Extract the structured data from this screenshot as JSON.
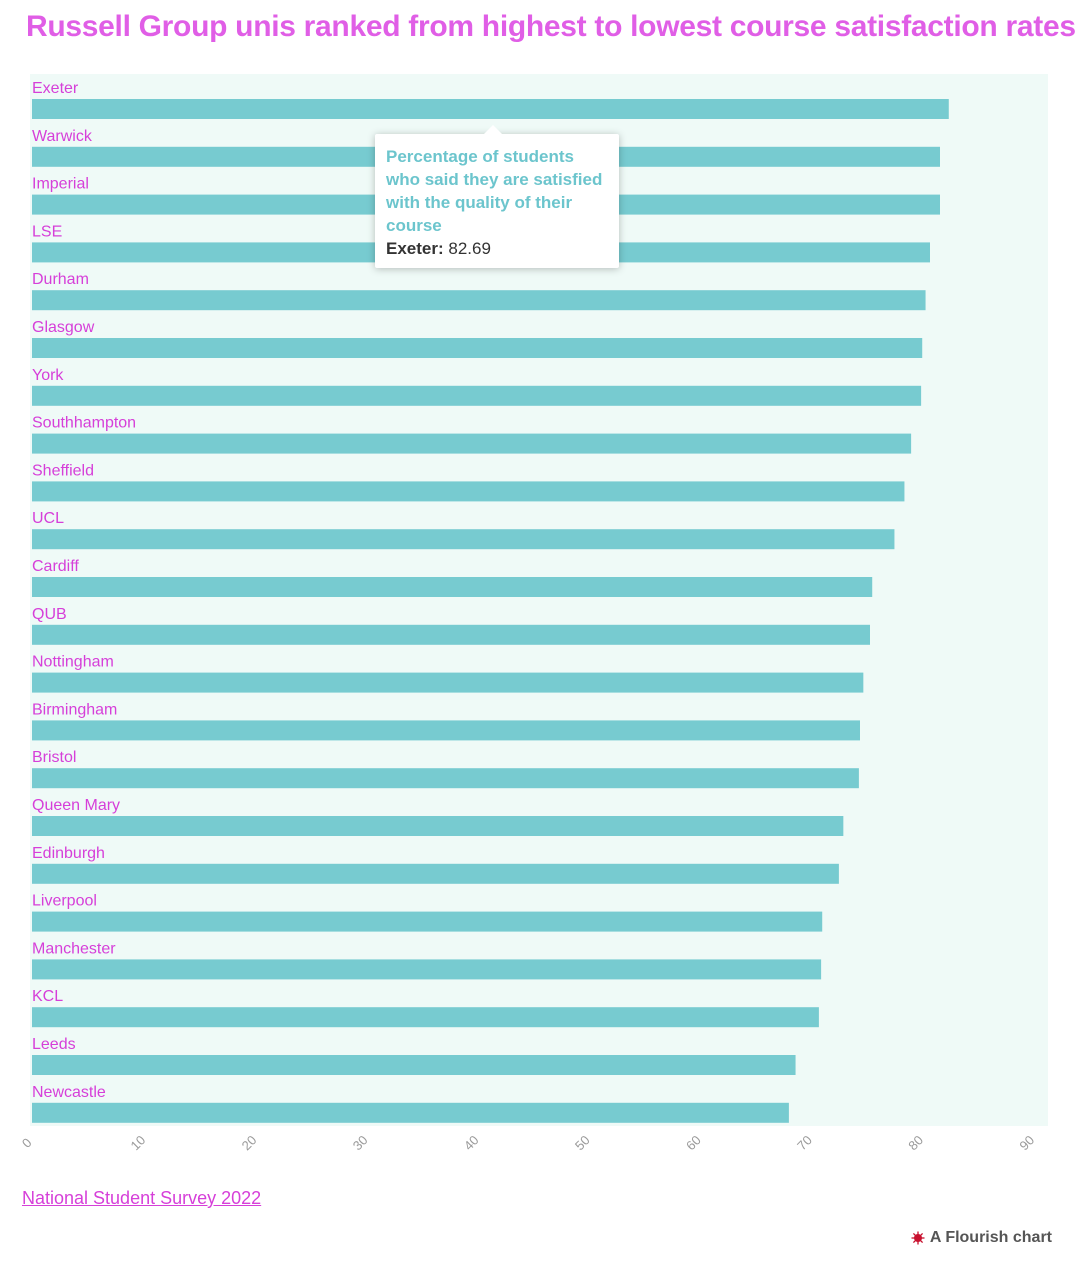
{
  "title": "Russell Group unis ranked from highest to lowest course satisfaction rates",
  "colors": {
    "bar": "#77cbd0",
    "background": "#effaf7",
    "label": "#d63fd9",
    "title": "#e05ee6",
    "tooltip_text": "#6cc5cd"
  },
  "tooltip": {
    "description": "Percentage of students who said they are satisfied with the quality of their course",
    "category": "Exeter:",
    "value": "82.69"
  },
  "source": {
    "label": "National Student Survey 2022"
  },
  "credit": {
    "label": "A Flourish chart",
    "icon": "flourish-logo-icon"
  },
  "chart_data": {
    "type": "bar",
    "orientation": "horizontal",
    "title": "Russell Group unis ranked from highest to lowest course satisfaction rates",
    "xlabel": "",
    "ylabel": "",
    "xlim": [
      0,
      90
    ],
    "ticks": [
      0,
      10,
      20,
      30,
      40,
      50,
      60,
      70,
      80,
      90
    ],
    "grid": false,
    "categories": [
      "Exeter",
      "Warwick",
      "Imperial",
      "LSE",
      "Durham",
      "Glasgow",
      "York",
      "Southhampton",
      "Sheffield",
      "UCL",
      "Cardiff",
      "QUB",
      "Nottingham",
      "Birmingham",
      "Bristol",
      "Queen Mary",
      "Edinburgh",
      "Liverpool",
      "Manchester",
      "KCL",
      "Leeds",
      "Newcastle"
    ],
    "values": [
      82.69,
      81.9,
      81.9,
      81.0,
      80.6,
      80.3,
      80.2,
      79.3,
      78.7,
      77.8,
      75.8,
      75.6,
      75.0,
      74.7,
      74.6,
      73.2,
      72.8,
      71.3,
      71.2,
      71.0,
      68.9,
      68.3
    ]
  }
}
